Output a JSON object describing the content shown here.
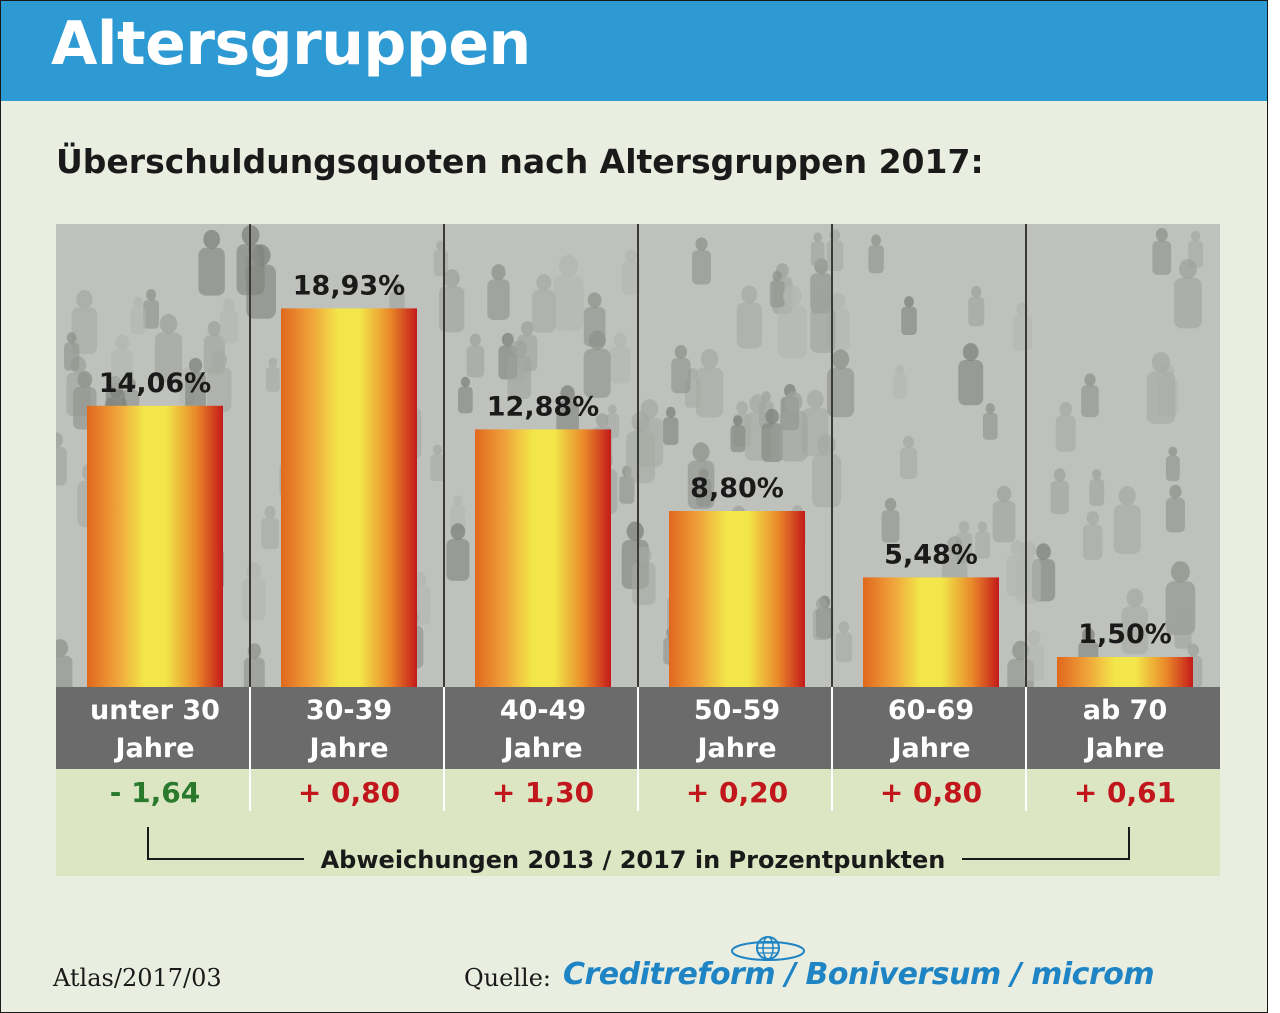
{
  "header": {
    "title": "Altersgruppen"
  },
  "subtitle": "Überschuldungsquoten nach Altersgruppen 2017:",
  "chart_data": {
    "type": "bar",
    "categories": [
      [
        "unter 30",
        "Jahre"
      ],
      [
        "30-39",
        "Jahre"
      ],
      [
        "40-49",
        "Jahre"
      ],
      [
        "50-59",
        "Jahre"
      ],
      [
        "60-69",
        "Jahre"
      ],
      [
        "ab 70",
        "Jahre"
      ]
    ],
    "values": [
      14.06,
      18.93,
      12.88,
      8.8,
      5.48,
      1.5
    ],
    "value_labels": [
      "14,06%",
      "18,93%",
      "12,88%",
      "8,80%",
      "5,48%",
      "1,50%"
    ],
    "changes": [
      -1.64,
      0.8,
      1.3,
      0.2,
      0.8,
      0.61
    ],
    "change_labels": [
      "- 1,64",
      "+ 0,80",
      "+ 1,30",
      "+ 0,20",
      "+ 0,80",
      "+ 0,61"
    ],
    "change_caption": "Abweichungen 2013 / 2017 in Prozentpunkten",
    "ylim": [
      0,
      20
    ],
    "grid": false,
    "colors": {
      "bar_edge": "#e0681e",
      "bar_center": "#f2e64a",
      "bar_right": "#c41a1a",
      "category_band": "#6b6b6b",
      "change_band": "#dde6c3",
      "positive": "#c0161c",
      "negative": "#2a7a2e",
      "photo_bg": "#bfc1bc"
    }
  },
  "footer": {
    "atlas": "Atlas/2017/03",
    "source_label": "Quelle:",
    "source_parts": [
      "Creditreform",
      "Boniversum",
      "microm"
    ],
    "source_separator": " / ",
    "brand_color": "#1e84c4"
  }
}
